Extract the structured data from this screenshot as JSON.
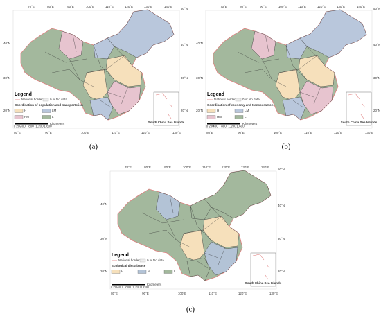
{
  "panels": [
    {
      "caption": "(a)",
      "legend": "Legend",
      "national_border": "National border",
      "no_data": "0 or No data",
      "legend_title": "Coordination of population and transportation",
      "classes": [
        "H",
        "HM",
        "LM",
        "L"
      ],
      "class_colors": [
        "#f6e0bb",
        "#e7c4cf",
        "#b9c7dc",
        "#a3b89d"
      ],
      "top_labels": [
        "70°E",
        "80°E",
        "90°E",
        "100°E",
        "110°E",
        "120°E",
        "130°E",
        "140°E"
      ],
      "bottom_labels": [
        "80°E",
        "90°E",
        "100°E",
        "110°E",
        "120°E",
        "130°E"
      ],
      "left_labels": [
        "40°N",
        "30°N",
        "20°N"
      ],
      "right_labels": [
        "50°N",
        "40°N",
        "30°N",
        "20°N"
      ],
      "scale_labels": [
        "0",
        "200",
        "400",
        "800",
        "1,200",
        "1,600"
      ],
      "scale_unit": "Kilometers",
      "inset_label": "South China Sea Islands"
    },
    {
      "caption": "(b)",
      "legend": "Legend",
      "national_border": "National border",
      "no_data": "0 or No data",
      "legend_title": "Coordination of economy and transportation",
      "classes": [
        "H",
        "HM",
        "LM",
        "L"
      ],
      "class_colors": [
        "#f6e0bb",
        "#e7c4cf",
        "#b9c7dc",
        "#a3b89d"
      ],
      "top_labels": [
        "70°E",
        "80°E",
        "90°E",
        "100°E",
        "110°E",
        "120°E",
        "130°E",
        "140°E"
      ],
      "bottom_labels": [
        "80°E",
        "90°E",
        "100°E",
        "110°E",
        "120°E",
        "130°E"
      ],
      "left_labels": [
        "40°N",
        "30°N",
        "20°N"
      ],
      "right_labels": [
        "50°N",
        "40°N",
        "30°N",
        "20°N"
      ],
      "scale_labels": [
        "0",
        "200",
        "400",
        "800",
        "1,200",
        "1,600"
      ],
      "scale_unit": "Kilometers",
      "inset_label": "South China Sea Islands"
    },
    {
      "caption": "(c)",
      "legend": "Legend",
      "national_border": "National border",
      "no_data": "0 or No data",
      "legend_title": "Ecological disturbance",
      "classes": [
        "H",
        "M",
        "L"
      ],
      "class_colors": [
        "#f6e0bb",
        "#b3c3d6",
        "#a3b89d"
      ],
      "top_labels": [
        "70°E",
        "80°E",
        "90°E",
        "100°E",
        "110°E",
        "120°E",
        "130°E",
        "140°E"
      ],
      "bottom_labels": [
        "80°E",
        "90°E",
        "100°E",
        "110°E",
        "120°E",
        "130°E"
      ],
      "left_labels": [
        "40°N",
        "30°N",
        "20°N"
      ],
      "right_labels": [
        "50°N",
        "40°N",
        "30°N",
        "20°N"
      ],
      "scale_labels": [
        "0",
        "200",
        "400",
        "800",
        "1,200",
        "1,600"
      ],
      "scale_unit": "Kilometers",
      "inset_label": "South China Sea Islands"
    }
  ]
}
